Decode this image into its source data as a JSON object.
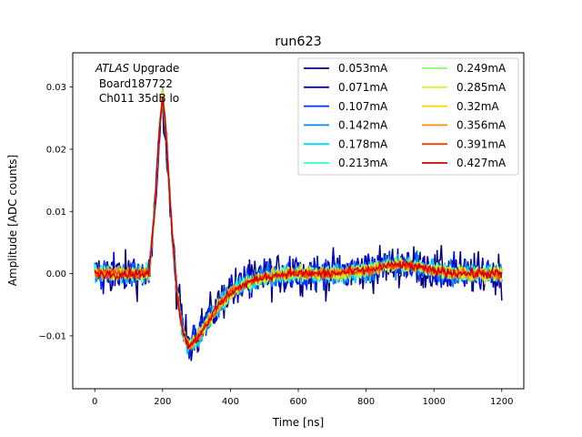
{
  "chart_data": {
    "type": "line",
    "title": "run623",
    "xlabel": "Time [ns]",
    "ylabel": "Amplitude [ADC counts]",
    "xlim": [
      -65,
      1265
    ],
    "ylim": [
      -0.0185,
      0.0355
    ],
    "xticks": [
      0,
      200,
      400,
      600,
      800,
      1000,
      1200
    ],
    "yticks": [
      -0.01,
      0.0,
      0.01,
      0.02,
      0.03
    ],
    "ytick_labels": [
      "−0.01",
      "0.00",
      "0.01",
      "0.02",
      "0.03"
    ],
    "grid": false,
    "legend": {
      "placement": "top-right",
      "columns": 2
    },
    "annotation": {
      "italic": "ATLAS",
      "line1_rest": " Upgrade",
      "line2": " Board187722",
      "line3": " Ch011 35dB lo"
    },
    "x_samples": {
      "start": 0,
      "stop": 1200,
      "step": 3.125
    },
    "pulse_shape": {
      "x": [
        0,
        160,
        175,
        190,
        200,
        210,
        225,
        240,
        255,
        270,
        280,
        300,
        330,
        360,
        400,
        450,
        500,
        560,
        620,
        700,
        800,
        860,
        900,
        950,
        1000,
        1100,
        1200
      ],
      "y": [
        0.0,
        0.0,
        0.009,
        0.023,
        0.0285,
        0.023,
        0.009,
        -0.002,
        -0.008,
        -0.011,
        -0.0115,
        -0.0105,
        -0.008,
        -0.0055,
        -0.003,
        -0.0015,
        -0.0005,
        0.0,
        0.0,
        0.0,
        0.0005,
        0.0012,
        0.0015,
        0.001,
        0.0005,
        0.0,
        0.0
      ]
    },
    "series": [
      {
        "name": "0.053mA",
        "color": "#000080",
        "noise": 0.0033,
        "scale": 0.93
      },
      {
        "name": "0.071mA",
        "color": "#0000d6",
        "noise": 0.0026,
        "scale": 0.96
      },
      {
        "name": "0.107mA",
        "color": "#0032ff",
        "noise": 0.0021,
        "scale": 0.98
      },
      {
        "name": "0.142mA",
        "color": "#0088ff",
        "noise": 0.0018,
        "scale": 0.99
      },
      {
        "name": "0.178mA",
        "color": "#00d8ff",
        "noise": 0.0015,
        "scale": 1.0
      },
      {
        "name": "0.213mA",
        "color": "#33ffc4",
        "noise": 0.0013,
        "scale": 1.0
      },
      {
        "name": "0.249mA",
        "color": "#88ff72",
        "noise": 0.0012,
        "scale": 1.0
      },
      {
        "name": "0.285mA",
        "color": "#c4ff33",
        "noise": 0.0011,
        "scale": 1.0
      },
      {
        "name": "0.32mA",
        "color": "#ffd300",
        "noise": 0.001,
        "scale": 1.0
      },
      {
        "name": "0.356mA",
        "color": "#ff8c00",
        "noise": 0.0009,
        "scale": 1.0
      },
      {
        "name": "0.391mA",
        "color": "#ff3f00",
        "noise": 0.0008,
        "scale": 1.0
      },
      {
        "name": "0.427mA",
        "color": "#d00000",
        "noise": 0.0007,
        "scale": 1.0
      }
    ]
  }
}
